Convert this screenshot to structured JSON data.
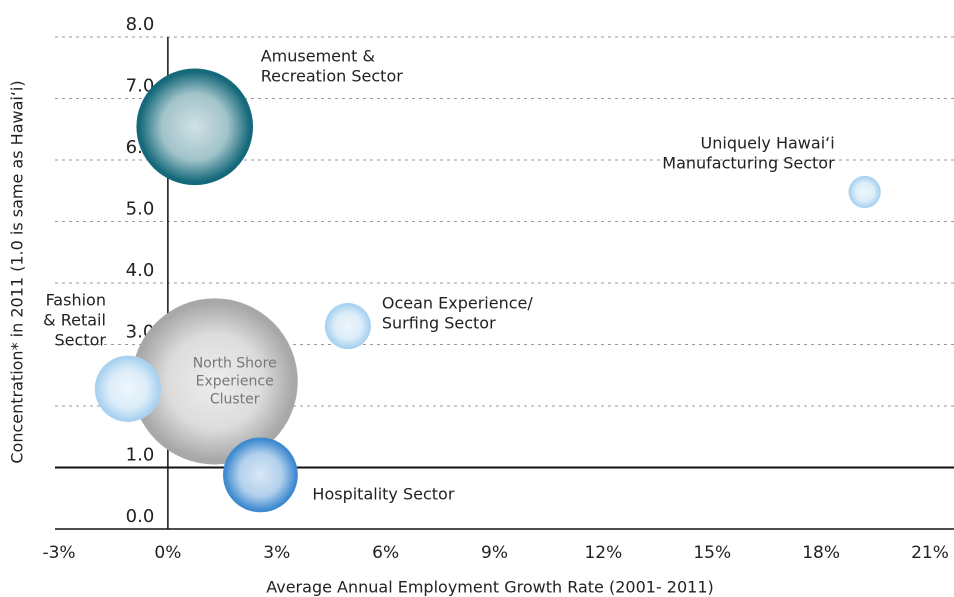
{
  "chart_data": {
    "type": "bubble",
    "x_label": "Average Annual Employment Growth Rate (2001- 2011)",
    "y_label": "Concentration* in 2011 (1.0 is same as Hawai‘i)",
    "xlim": [
      -3,
      21
    ],
    "xticks": [
      {
        "value": -3,
        "label": "-3%"
      },
      {
        "value": 0,
        "label": "0%"
      },
      {
        "value": 3,
        "label": "3%"
      },
      {
        "value": 6,
        "label": "6%"
      },
      {
        "value": 9,
        "label": "9%"
      },
      {
        "value": 12,
        "label": "12%"
      },
      {
        "value": 15,
        "label": "15%"
      },
      {
        "value": 18,
        "label": "18%"
      },
      {
        "value": 21,
        "label": "21%"
      }
    ],
    "ylim": [
      0,
      8
    ],
    "yticks": [
      {
        "value": 0,
        "label": "0.0"
      },
      {
        "value": 1,
        "label": "1.0"
      },
      {
        "value": 2,
        "label": "2.0"
      },
      {
        "value": 3,
        "label": "3.0"
      },
      {
        "value": 4,
        "label": "4.0"
      },
      {
        "value": 5,
        "label": "5.0"
      },
      {
        "value": 6,
        "label": "6.0"
      },
      {
        "value": 7,
        "label": "7.0"
      },
      {
        "value": 8,
        "label": "8.0"
      }
    ],
    "grid": true,
    "reference_line": 1,
    "series": [
      {
        "labels": [
          [
            "Amusement &",
            "Recreation Sector"
          ],
          [
            "Uniquely Hawai‘i",
            "Manufacturing Sector"
          ],
          [
            "Ocean Experience/",
            "Surfing Sector"
          ],
          [
            "North Shore",
            "Experience",
            "Cluster"
          ],
          [
            "Fashion",
            "& Retail",
            "Sector"
          ],
          [
            "Hospitality Sector"
          ]
        ],
        "x": [
          0.74,
          19.2,
          4.96,
          1.29,
          -1.1,
          2.55
        ],
        "values": [
          6.54,
          5.48,
          3.3,
          2.4,
          2.28,
          0.88
        ],
        "sizes": [
          34,
          2.6,
          5.3,
          69,
          11,
          14
        ],
        "colors": [
          "#14697a",
          "#a9d2f0",
          "#a9d2f0",
          "#a8a8a8",
          "#a9d2f0",
          "#3f8ad0"
        ]
      }
    ]
  }
}
